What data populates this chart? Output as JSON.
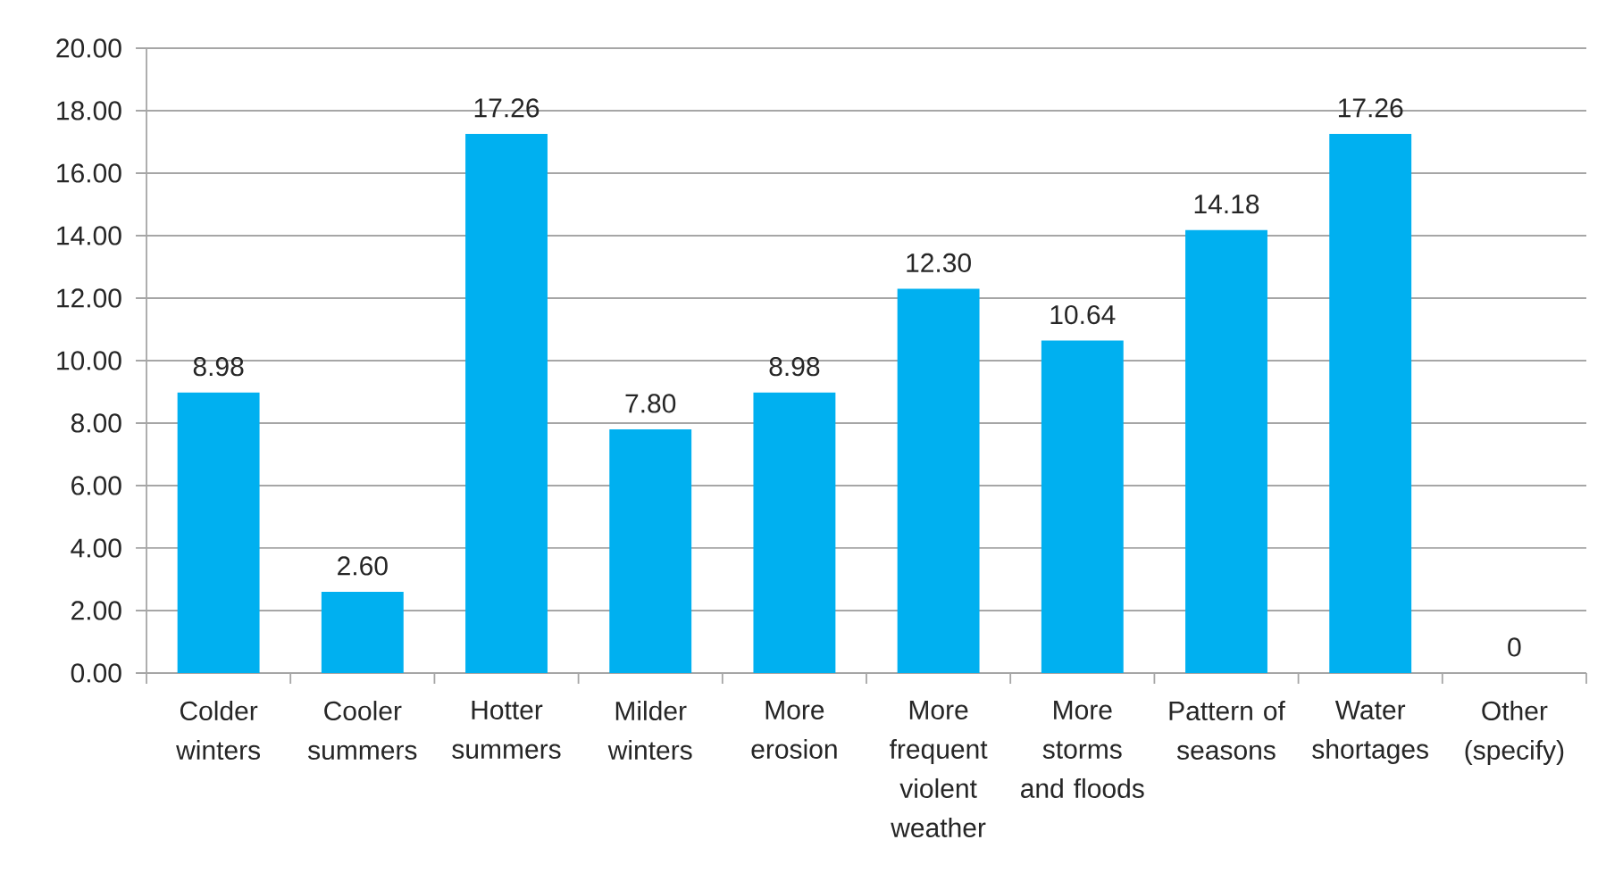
{
  "chart_data": {
    "type": "bar",
    "categories": [
      "Colder winters",
      "Cooler summers",
      "Hotter summers",
      "Milder winters",
      "More erosion",
      "More frequent violent weather",
      "More storms and floods",
      "Pattern of seasons",
      "Water shortages",
      "Other (specify)"
    ],
    "values": [
      8.98,
      2.6,
      17.26,
      7.8,
      8.98,
      12.3,
      10.64,
      14.18,
      17.26,
      0
    ],
    "value_labels": [
      "8.98",
      "2.60",
      "17.26",
      "7.80",
      "8.98",
      "12.30",
      "10.64",
      "14.18",
      "17.26",
      "0"
    ],
    "color": "#00b0f0",
    "ylim": [
      0,
      20
    ],
    "yticks": [
      {
        "value": 0,
        "label": "0.00"
      },
      {
        "value": 2,
        "label": "2.00"
      },
      {
        "value": 4,
        "label": "4.00"
      },
      {
        "value": 6,
        "label": "6.00"
      },
      {
        "value": 8,
        "label": "8.00"
      },
      {
        "value": 10,
        "label": "10.00"
      },
      {
        "value": 12,
        "label": "12.00"
      },
      {
        "value": 14,
        "label": "14.00"
      },
      {
        "value": 16,
        "label": "16.00"
      },
      {
        "value": 18,
        "label": "18.00"
      },
      {
        "value": 20,
        "label": "20.00"
      }
    ],
    "grid": "y"
  }
}
